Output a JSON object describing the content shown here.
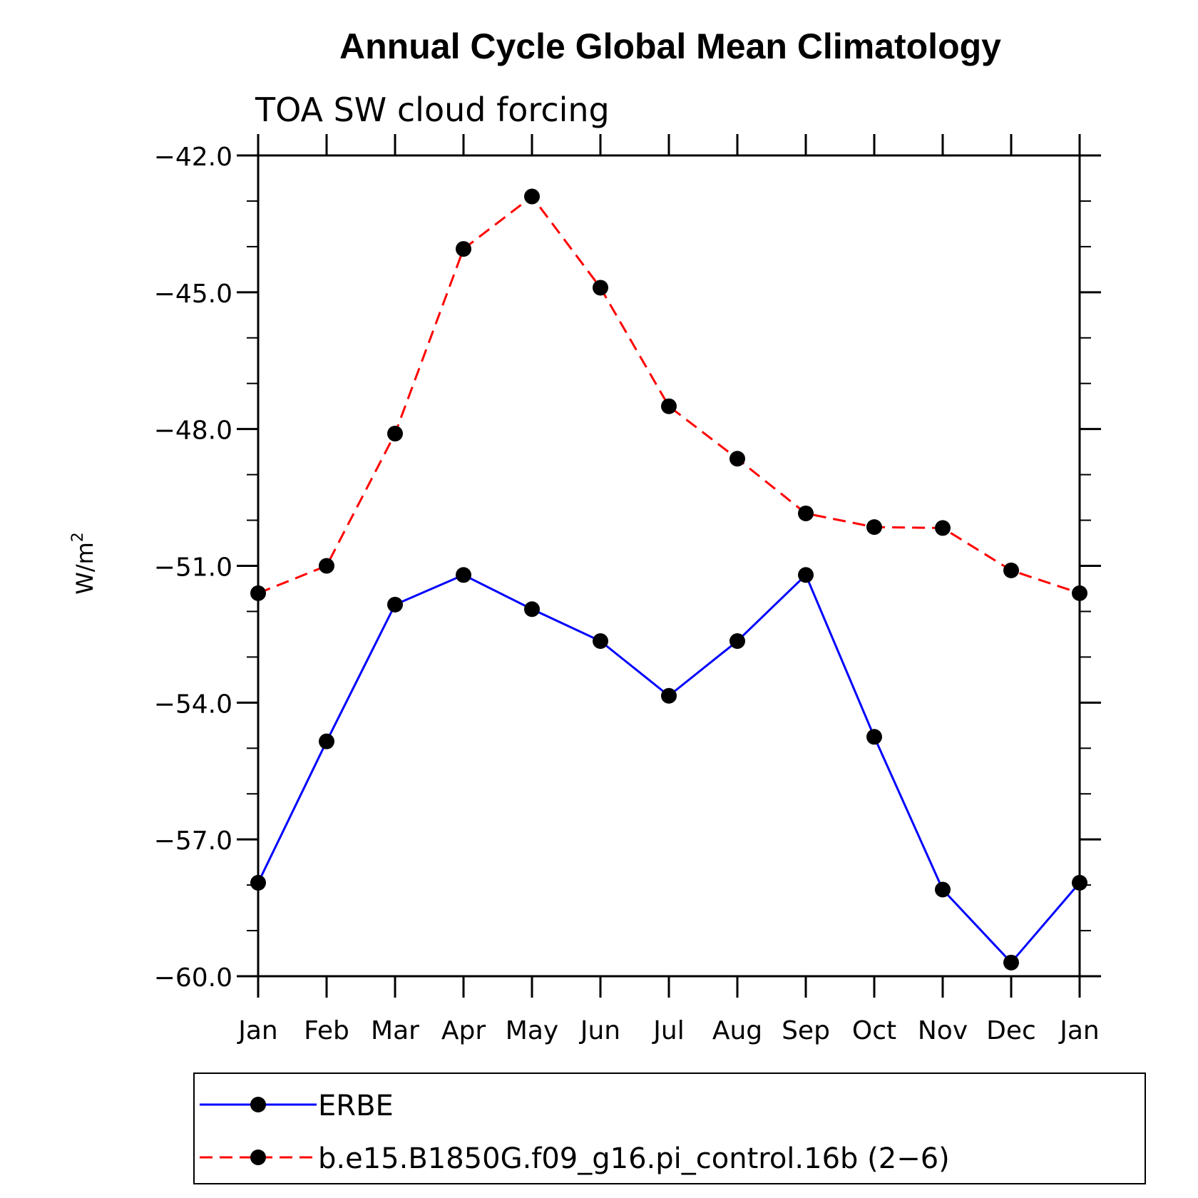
{
  "chart_data": {
    "type": "line",
    "title": "Annual Cycle Global Mean Climatology",
    "subtitle": "TOA SW cloud forcing",
    "ylabel": "W/m2",
    "ylabel_base": "W/m",
    "ylabel_sup": "2",
    "xlabel": "",
    "categories": [
      "Jan",
      "Feb",
      "Mar",
      "Apr",
      "May",
      "Jun",
      "Jul",
      "Aug",
      "Sep",
      "Oct",
      "Nov",
      "Dec",
      "Jan"
    ],
    "ylim": [
      -60.0,
      -42.0
    ],
    "yticks": [
      "−42.0",
      "−45.0",
      "−48.0",
      "−51.0",
      "−54.0",
      "−57.0",
      "−60.0"
    ],
    "ytick_values": [
      -42,
      -45,
      -48,
      -51,
      -54,
      -57,
      -60
    ],
    "series": [
      {
        "name": "ERBE",
        "color": "#0000ff",
        "dash": "solid",
        "marker": "filled-circle",
        "values": [
          -57.95,
          -54.85,
          -51.85,
          -51.2,
          -51.95,
          -52.65,
          -53.85,
          -52.65,
          -51.2,
          -54.75,
          -58.1,
          -59.7,
          -57.95
        ]
      },
      {
        "name": "b.e15.B1850G.f09_g16.pi_control.16b (2−6)",
        "color": "#ff0000",
        "dash": "dashed",
        "marker": "filled-circle",
        "values": [
          -51.6,
          -51.0,
          -48.1,
          -44.05,
          -42.9,
          -44.9,
          -47.5,
          -48.65,
          -49.85,
          -50.15,
          -50.17,
          -51.1,
          -51.6
        ]
      }
    ],
    "grid": false,
    "legend_position": "bottom"
  }
}
